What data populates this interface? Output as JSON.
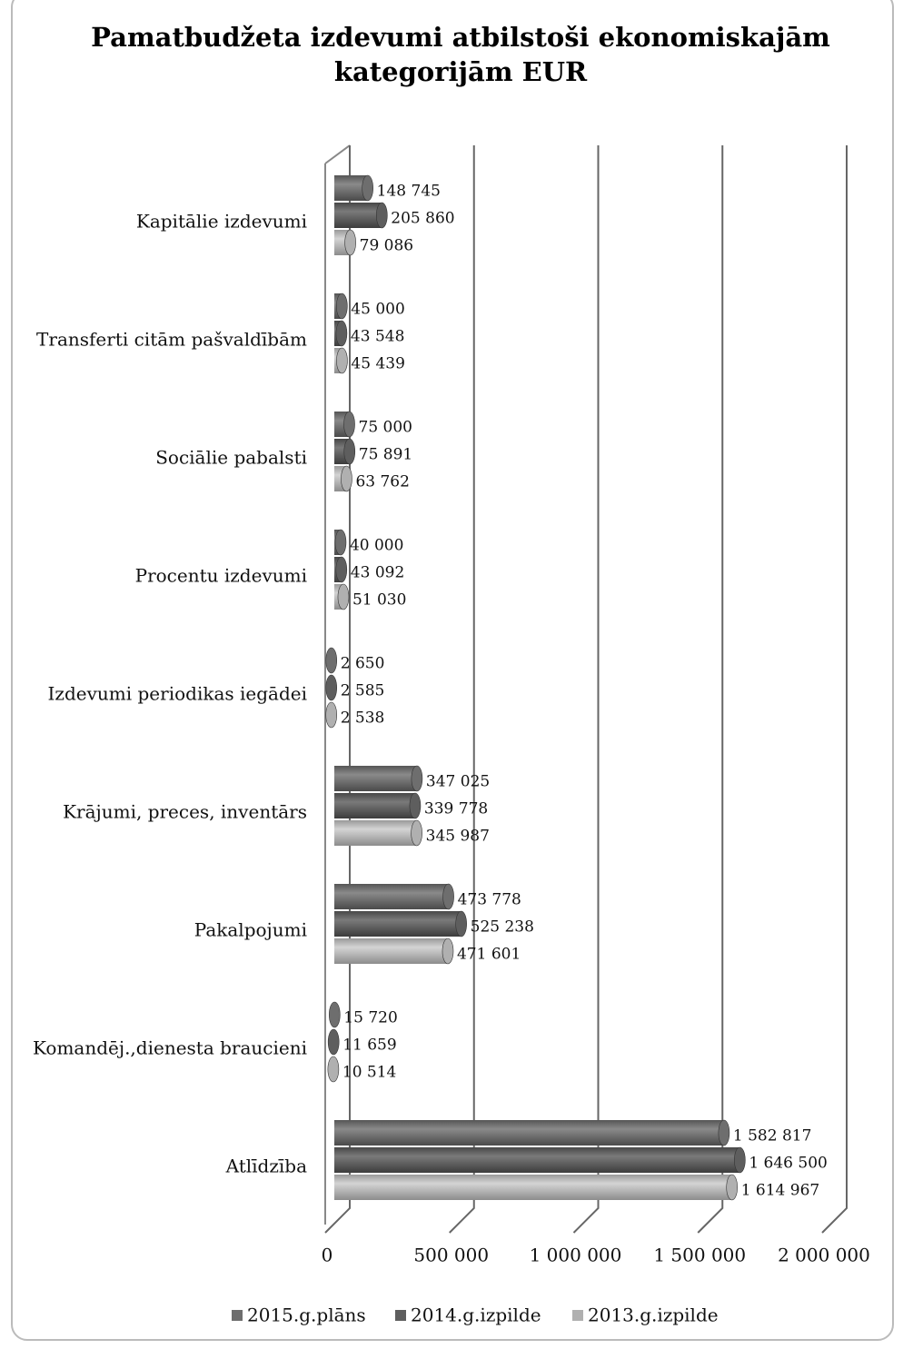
{
  "chart_data": {
    "type": "bar",
    "orientation": "horizontal",
    "title": "Pamatbudžeta izdevumi atbilstoši ekonomiskajām kategorijām EUR",
    "categories": [
      "Kapitālie izdevumi",
      "Transferti citām pašvaldībām",
      "Sociālie pabalsti",
      "Procentu izdevumi",
      "Izdevumi periodikas iegādei",
      "Krājumi, preces, inventārs",
      "Pakalpojumi",
      "Komandēj.,dienesta braucieni",
      "Atlīdzība"
    ],
    "series": [
      {
        "name": "2015.g.plāns",
        "color": "#6e6e6e",
        "values": [
          148745,
          45000,
          75000,
          40000,
          2650,
          347025,
          473778,
          15720,
          1582817
        ],
        "value_labels": [
          "148 745",
          "45 000",
          "75 000",
          "40 000",
          "2 650",
          "347 025",
          "473 778",
          "15 720",
          "1 582 817"
        ]
      },
      {
        "name": "2014.g.izpilde",
        "color": "#5e5e5e",
        "values": [
          205860,
          43548,
          75891,
          43092,
          2585,
          339778,
          525238,
          11659,
          1646500
        ],
        "value_labels": [
          "205 860",
          "43 548",
          "75 891",
          "43 092",
          "2 585",
          "339 778",
          "525 238",
          "11 659",
          "1 646 500"
        ]
      },
      {
        "name": "2013.g.izpilde",
        "color": "#b0b0b0",
        "values": [
          79086,
          45439,
          63762,
          51030,
          2538,
          345987,
          471601,
          10514,
          1614967
        ],
        "value_labels": [
          "79 086",
          "45 439",
          "63 762",
          "51 030",
          "2 538",
          "345 987",
          "471 601",
          "10 514",
          "1 614 967"
        ]
      }
    ],
    "xlim": [
      0,
      2000000
    ],
    "xticks": [
      0,
      {
        "value": 500000,
        "label": "500 000"
      },
      {
        "value": 1000000,
        "label": "1 000 000"
      },
      {
        "value": 1500000,
        "label": "1 500 000"
      },
      {
        "value": 2000000,
        "label": "2 000 000"
      }
    ],
    "grid": true,
    "legend": "bottom"
  }
}
